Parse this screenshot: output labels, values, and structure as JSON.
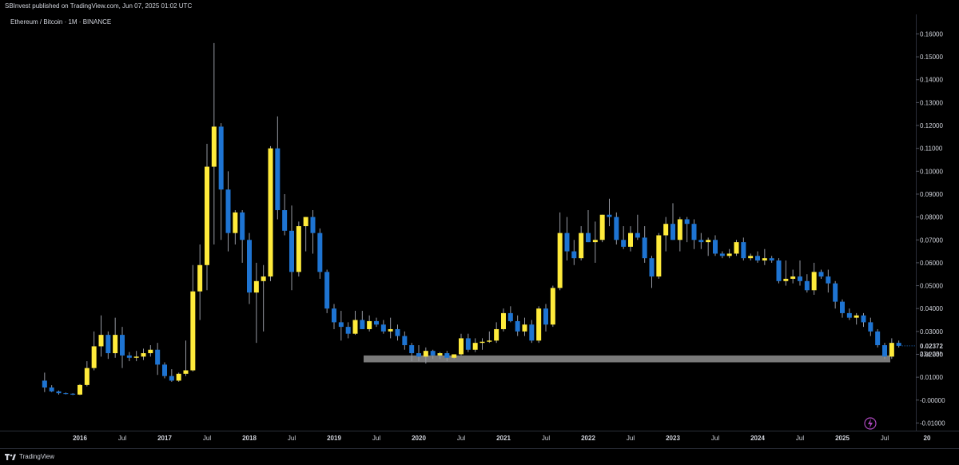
{
  "header": {
    "publisher": "SBInvest published on TradingView.com, Jun 07, 2025 01:02 UTC",
    "symbol": "Ethereum / Bitcoin · 1M · BINANCE"
  },
  "footer": {
    "brand": "TradingView"
  },
  "colors": {
    "up": "#ffeb3b",
    "down": "#1e74d2",
    "wick": "#9598a1",
    "zone": "#7a7a7a",
    "bg": "#000000"
  },
  "chart_data": {
    "type": "candlestick",
    "title": "Ethereum / Bitcoin · 1M · BINANCE",
    "ylim": [
      -0.013,
      0.164
    ],
    "y_ticks": [
      "0.16000",
      "0.15000",
      "0.14000",
      "0.13000",
      "0.12000",
      "0.11000",
      "0.10000",
      "0.09000",
      "0.08000",
      "0.07000",
      "0.06000",
      "0.05000",
      "0.04000",
      "0.03000",
      "0.02000",
      "0.01000",
      "-0.00000",
      "-0.01000"
    ],
    "x_ticks": [
      {
        "label": "2016",
        "t": 2016.0,
        "year": true
      },
      {
        "label": "Jul",
        "t": 2016.5
      },
      {
        "label": "2017",
        "t": 2017.0,
        "year": true
      },
      {
        "label": "Jul",
        "t": 2017.5
      },
      {
        "label": "2018",
        "t": 2018.0,
        "year": true
      },
      {
        "label": "Jul",
        "t": 2018.5
      },
      {
        "label": "2019",
        "t": 2019.0,
        "year": true
      },
      {
        "label": "Jul",
        "t": 2019.5
      },
      {
        "label": "2020",
        "t": 2020.0,
        "year": true
      },
      {
        "label": "Jul",
        "t": 2020.5
      },
      {
        "label": "2021",
        "t": 2021.0,
        "year": true
      },
      {
        "label": "Jul",
        "t": 2021.5
      },
      {
        "label": "2022",
        "t": 2022.0,
        "year": true
      },
      {
        "label": "Jul",
        "t": 2022.5
      },
      {
        "label": "2023",
        "t": 2023.0,
        "year": true
      },
      {
        "label": "Jul",
        "t": 2023.5
      },
      {
        "label": "2024",
        "t": 2024.0,
        "year": true
      },
      {
        "label": "Jul",
        "t": 2024.5
      },
      {
        "label": "2025",
        "t": 2025.0,
        "year": true
      },
      {
        "label": "Jul",
        "t": 2025.5
      },
      {
        "label": "20",
        "t": 2026.0,
        "year": true
      }
    ],
    "last_price": "0.02372",
    "countdown": "23d 23h",
    "support_zone": {
      "from": "2019-07",
      "to": "2025-07",
      "low": 0.0165,
      "high": 0.0195
    },
    "candles": [
      {
        "t": "2015-08",
        "o": 0.0085,
        "h": 0.012,
        "l": 0.0035,
        "c": 0.0055
      },
      {
        "t": "2015-09",
        "o": 0.0055,
        "h": 0.0065,
        "l": 0.0035,
        "c": 0.0038
      },
      {
        "t": "2015-10",
        "o": 0.0038,
        "h": 0.0042,
        "l": 0.0024,
        "c": 0.003
      },
      {
        "t": "2015-11",
        "o": 0.003,
        "h": 0.0033,
        "l": 0.0025,
        "c": 0.0028
      },
      {
        "t": "2015-12",
        "o": 0.0028,
        "h": 0.003,
        "l": 0.0022,
        "c": 0.0024
      },
      {
        "t": "2016-01",
        "o": 0.0024,
        "h": 0.007,
        "l": 0.0022,
        "c": 0.0066
      },
      {
        "t": "2016-02",
        "o": 0.0066,
        "h": 0.017,
        "l": 0.006,
        "c": 0.014
      },
      {
        "t": "2016-03",
        "o": 0.014,
        "h": 0.03,
        "l": 0.013,
        "c": 0.0235
      },
      {
        "t": "2016-04",
        "o": 0.0235,
        "h": 0.037,
        "l": 0.019,
        "c": 0.0285
      },
      {
        "t": "2016-05",
        "o": 0.0285,
        "h": 0.03,
        "l": 0.018,
        "c": 0.0205
      },
      {
        "t": "2016-06",
        "o": 0.0205,
        "h": 0.036,
        "l": 0.0185,
        "c": 0.0285
      },
      {
        "t": "2016-07",
        "o": 0.0285,
        "h": 0.032,
        "l": 0.014,
        "c": 0.0195
      },
      {
        "t": "2016-08",
        "o": 0.0195,
        "h": 0.021,
        "l": 0.017,
        "c": 0.0185
      },
      {
        "t": "2016-09",
        "o": 0.0185,
        "h": 0.0215,
        "l": 0.017,
        "c": 0.019
      },
      {
        "t": "2016-10",
        "o": 0.019,
        "h": 0.0225,
        "l": 0.0175,
        "c": 0.0205
      },
      {
        "t": "2016-11",
        "o": 0.0205,
        "h": 0.024,
        "l": 0.019,
        "c": 0.022
      },
      {
        "t": "2016-12",
        "o": 0.022,
        "h": 0.025,
        "l": 0.011,
        "c": 0.0155
      },
      {
        "t": "2017-01",
        "o": 0.0155,
        "h": 0.0165,
        "l": 0.0095,
        "c": 0.0105
      },
      {
        "t": "2017-02",
        "o": 0.0105,
        "h": 0.0135,
        "l": 0.008,
        "c": 0.0085
      },
      {
        "t": "2017-03",
        "o": 0.0085,
        "h": 0.012,
        "l": 0.008,
        "c": 0.0115
      },
      {
        "t": "2017-04",
        "o": 0.0115,
        "h": 0.026,
        "l": 0.0105,
        "c": 0.013
      },
      {
        "t": "2017-05",
        "o": 0.013,
        "h": 0.059,
        "l": 0.0125,
        "c": 0.0475
      },
      {
        "t": "2017-06",
        "o": 0.0475,
        "h": 0.068,
        "l": 0.035,
        "c": 0.059
      },
      {
        "t": "2017-07",
        "o": 0.059,
        "h": 0.112,
        "l": 0.048,
        "c": 0.102
      },
      {
        "t": "2017-08",
        "o": 0.102,
        "h": 0.156,
        "l": 0.068,
        "c": 0.1195
      },
      {
        "t": "2017-09",
        "o": 0.1195,
        "h": 0.121,
        "l": 0.07,
        "c": 0.092
      },
      {
        "t": "2017-10",
        "o": 0.092,
        "h": 0.1,
        "l": 0.065,
        "c": 0.073
      },
      {
        "t": "2017-11",
        "o": 0.073,
        "h": 0.083,
        "l": 0.068,
        "c": 0.082
      },
      {
        "t": "2017-12",
        "o": 0.082,
        "h": 0.083,
        "l": 0.06,
        "c": 0.07
      },
      {
        "t": "2018-01",
        "o": 0.07,
        "h": 0.073,
        "l": 0.042,
        "c": 0.047
      },
      {
        "t": "2018-02",
        "o": 0.047,
        "h": 0.06,
        "l": 0.025,
        "c": 0.052
      },
      {
        "t": "2018-03",
        "o": 0.052,
        "h": 0.059,
        "l": 0.03,
        "c": 0.054
      },
      {
        "t": "2018-04",
        "o": 0.054,
        "h": 0.111,
        "l": 0.052,
        "c": 0.11
      },
      {
        "t": "2018-05",
        "o": 0.11,
        "h": 0.124,
        "l": 0.079,
        "c": 0.083
      },
      {
        "t": "2018-06",
        "o": 0.083,
        "h": 0.09,
        "l": 0.072,
        "c": 0.074
      },
      {
        "t": "2018-07",
        "o": 0.074,
        "h": 0.085,
        "l": 0.048,
        "c": 0.056
      },
      {
        "t": "2018-08",
        "o": 0.056,
        "h": 0.078,
        "l": 0.054,
        "c": 0.076
      },
      {
        "t": "2018-09",
        "o": 0.076,
        "h": 0.08,
        "l": 0.065,
        "c": 0.08
      },
      {
        "t": "2018-10",
        "o": 0.08,
        "h": 0.083,
        "l": 0.064,
        "c": 0.073
      },
      {
        "t": "2018-11",
        "o": 0.073,
        "h": 0.075,
        "l": 0.053,
        "c": 0.056
      },
      {
        "t": "2018-12",
        "o": 0.056,
        "h": 0.057,
        "l": 0.038,
        "c": 0.04
      },
      {
        "t": "2019-01",
        "o": 0.04,
        "h": 0.042,
        "l": 0.031,
        "c": 0.034
      },
      {
        "t": "2019-02",
        "o": 0.034,
        "h": 0.039,
        "l": 0.026,
        "c": 0.032
      },
      {
        "t": "2019-03",
        "o": 0.032,
        "h": 0.034,
        "l": 0.027,
        "c": 0.029
      },
      {
        "t": "2019-04",
        "o": 0.029,
        "h": 0.039,
        "l": 0.0285,
        "c": 0.035
      },
      {
        "t": "2019-05",
        "o": 0.035,
        "h": 0.039,
        "l": 0.031,
        "c": 0.031
      },
      {
        "t": "2019-06",
        "o": 0.031,
        "h": 0.037,
        "l": 0.03,
        "c": 0.0345
      },
      {
        "t": "2019-07",
        "o": 0.0345,
        "h": 0.036,
        "l": 0.032,
        "c": 0.033
      },
      {
        "t": "2019-08",
        "o": 0.033,
        "h": 0.035,
        "l": 0.029,
        "c": 0.03
      },
      {
        "t": "2019-09",
        "o": 0.03,
        "h": 0.036,
        "l": 0.027,
        "c": 0.031
      },
      {
        "t": "2019-10",
        "o": 0.031,
        "h": 0.033,
        "l": 0.026,
        "c": 0.028
      },
      {
        "t": "2019-11",
        "o": 0.028,
        "h": 0.03,
        "l": 0.022,
        "c": 0.024
      },
      {
        "t": "2019-12",
        "o": 0.024,
        "h": 0.025,
        "l": 0.017,
        "c": 0.0205
      },
      {
        "t": "2020-01",
        "o": 0.0205,
        "h": 0.024,
        "l": 0.017,
        "c": 0.019
      },
      {
        "t": "2020-02",
        "o": 0.019,
        "h": 0.023,
        "l": 0.016,
        "c": 0.0215
      },
      {
        "t": "2020-03",
        "o": 0.0215,
        "h": 0.022,
        "l": 0.018,
        "c": 0.0195
      },
      {
        "t": "2020-04",
        "o": 0.0195,
        "h": 0.021,
        "l": 0.018,
        "c": 0.0205
      },
      {
        "t": "2020-05",
        "o": 0.0205,
        "h": 0.0215,
        "l": 0.017,
        "c": 0.0185
      },
      {
        "t": "2020-06",
        "o": 0.0185,
        "h": 0.02,
        "l": 0.018,
        "c": 0.02
      },
      {
        "t": "2020-07",
        "o": 0.02,
        "h": 0.029,
        "l": 0.0195,
        "c": 0.027
      },
      {
        "t": "2020-08",
        "o": 0.027,
        "h": 0.029,
        "l": 0.021,
        "c": 0.022
      },
      {
        "t": "2020-09",
        "o": 0.022,
        "h": 0.027,
        "l": 0.021,
        "c": 0.025
      },
      {
        "t": "2020-10",
        "o": 0.025,
        "h": 0.027,
        "l": 0.022,
        "c": 0.0255
      },
      {
        "t": "2020-11",
        "o": 0.0255,
        "h": 0.03,
        "l": 0.025,
        "c": 0.026
      },
      {
        "t": "2020-12",
        "o": 0.026,
        "h": 0.034,
        "l": 0.025,
        "c": 0.031
      },
      {
        "t": "2021-01",
        "o": 0.031,
        "h": 0.04,
        "l": 0.03,
        "c": 0.038
      },
      {
        "t": "2021-02",
        "o": 0.038,
        "h": 0.041,
        "l": 0.034,
        "c": 0.0345
      },
      {
        "t": "2021-03",
        "o": 0.0345,
        "h": 0.037,
        "l": 0.028,
        "c": 0.03
      },
      {
        "t": "2021-04",
        "o": 0.03,
        "h": 0.036,
        "l": 0.028,
        "c": 0.033
      },
      {
        "t": "2021-05",
        "o": 0.033,
        "h": 0.035,
        "l": 0.025,
        "c": 0.026
      },
      {
        "t": "2021-06",
        "o": 0.026,
        "h": 0.041,
        "l": 0.025,
        "c": 0.04
      },
      {
        "t": "2021-07",
        "o": 0.04,
        "h": 0.042,
        "l": 0.03,
        "c": 0.033
      },
      {
        "t": "2021-08",
        "o": 0.033,
        "h": 0.05,
        "l": 0.032,
        "c": 0.049
      },
      {
        "t": "2021-09",
        "o": 0.049,
        "h": 0.082,
        "l": 0.048,
        "c": 0.073
      },
      {
        "t": "2021-10",
        "o": 0.073,
        "h": 0.08,
        "l": 0.061,
        "c": 0.065
      },
      {
        "t": "2021-11",
        "o": 0.065,
        "h": 0.07,
        "l": 0.059,
        "c": 0.062
      },
      {
        "t": "2021-12",
        "o": 0.062,
        "h": 0.076,
        "l": 0.061,
        "c": 0.073
      },
      {
        "t": "2022-01",
        "o": 0.073,
        "h": 0.083,
        "l": 0.069,
        "c": 0.069
      },
      {
        "t": "2022-02",
        "o": 0.069,
        "h": 0.078,
        "l": 0.06,
        "c": 0.07
      },
      {
        "t": "2022-03",
        "o": 0.07,
        "h": 0.081,
        "l": 0.069,
        "c": 0.081
      },
      {
        "t": "2022-04",
        "o": 0.081,
        "h": 0.088,
        "l": 0.076,
        "c": 0.08
      },
      {
        "t": "2022-05",
        "o": 0.08,
        "h": 0.082,
        "l": 0.068,
        "c": 0.07
      },
      {
        "t": "2022-06",
        "o": 0.07,
        "h": 0.076,
        "l": 0.066,
        "c": 0.067
      },
      {
        "t": "2022-07",
        "o": 0.067,
        "h": 0.076,
        "l": 0.065,
        "c": 0.073
      },
      {
        "t": "2022-08",
        "o": 0.073,
        "h": 0.081,
        "l": 0.07,
        "c": 0.071
      },
      {
        "t": "2022-09",
        "o": 0.071,
        "h": 0.076,
        "l": 0.06,
        "c": 0.062
      },
      {
        "t": "2022-10",
        "o": 0.062,
        "h": 0.063,
        "l": 0.049,
        "c": 0.054
      },
      {
        "t": "2022-11",
        "o": 0.054,
        "h": 0.073,
        "l": 0.053,
        "c": 0.072
      },
      {
        "t": "2022-12",
        "o": 0.072,
        "h": 0.08,
        "l": 0.065,
        "c": 0.077
      },
      {
        "t": "2023-01",
        "o": 0.077,
        "h": 0.086,
        "l": 0.07,
        "c": 0.07
      },
      {
        "t": "2023-02",
        "o": 0.07,
        "h": 0.08,
        "l": 0.065,
        "c": 0.079
      },
      {
        "t": "2023-03",
        "o": 0.079,
        "h": 0.08,
        "l": 0.069,
        "c": 0.077
      },
      {
        "t": "2023-04",
        "o": 0.077,
        "h": 0.079,
        "l": 0.066,
        "c": 0.07
      },
      {
        "t": "2023-05",
        "o": 0.07,
        "h": 0.073,
        "l": 0.066,
        "c": 0.069
      },
      {
        "t": "2023-06",
        "o": 0.069,
        "h": 0.071,
        "l": 0.063,
        "c": 0.07
      },
      {
        "t": "2023-07",
        "o": 0.07,
        "h": 0.072,
        "l": 0.063,
        "c": 0.064
      },
      {
        "t": "2023-08",
        "o": 0.064,
        "h": 0.065,
        "l": 0.062,
        "c": 0.063
      },
      {
        "t": "2023-09",
        "o": 0.063,
        "h": 0.066,
        "l": 0.062,
        "c": 0.064
      },
      {
        "t": "2023-10",
        "o": 0.064,
        "h": 0.07,
        "l": 0.063,
        "c": 0.069
      },
      {
        "t": "2023-11",
        "o": 0.069,
        "h": 0.071,
        "l": 0.061,
        "c": 0.062
      },
      {
        "t": "2023-12",
        "o": 0.062,
        "h": 0.064,
        "l": 0.061,
        "c": 0.063
      },
      {
        "t": "2024-01",
        "o": 0.063,
        "h": 0.065,
        "l": 0.06,
        "c": 0.061
      },
      {
        "t": "2024-02",
        "o": 0.061,
        "h": 0.066,
        "l": 0.059,
        "c": 0.062
      },
      {
        "t": "2024-03",
        "o": 0.062,
        "h": 0.063,
        "l": 0.06,
        "c": 0.061
      },
      {
        "t": "2024-04",
        "o": 0.061,
        "h": 0.062,
        "l": 0.051,
        "c": 0.052
      },
      {
        "t": "2024-05",
        "o": 0.052,
        "h": 0.061,
        "l": 0.05,
        "c": 0.053
      },
      {
        "t": "2024-06",
        "o": 0.053,
        "h": 0.057,
        "l": 0.051,
        "c": 0.054
      },
      {
        "t": "2024-07",
        "o": 0.054,
        "h": 0.061,
        "l": 0.05,
        "c": 0.052
      },
      {
        "t": "2024-08",
        "o": 0.052,
        "h": 0.055,
        "l": 0.047,
        "c": 0.048
      },
      {
        "t": "2024-09",
        "o": 0.048,
        "h": 0.06,
        "l": 0.046,
        "c": 0.056
      },
      {
        "t": "2024-10",
        "o": 0.056,
        "h": 0.057,
        "l": 0.053,
        "c": 0.054
      },
      {
        "t": "2024-11",
        "o": 0.054,
        "h": 0.057,
        "l": 0.047,
        "c": 0.051
      },
      {
        "t": "2024-12",
        "o": 0.051,
        "h": 0.052,
        "l": 0.04,
        "c": 0.043
      },
      {
        "t": "2025-01",
        "o": 0.043,
        "h": 0.044,
        "l": 0.036,
        "c": 0.038
      },
      {
        "t": "2025-02",
        "o": 0.038,
        "h": 0.04,
        "l": 0.035,
        "c": 0.036
      },
      {
        "t": "2025-03",
        "o": 0.036,
        "h": 0.038,
        "l": 0.033,
        "c": 0.037
      },
      {
        "t": "2025-04",
        "o": 0.037,
        "h": 0.038,
        "l": 0.032,
        "c": 0.034
      },
      {
        "t": "2025-05",
        "o": 0.034,
        "h": 0.036,
        "l": 0.028,
        "c": 0.03
      },
      {
        "t": "2025-06",
        "o": 0.03,
        "h": 0.031,
        "l": 0.023,
        "c": 0.024
      },
      {
        "t": "2025-07",
        "o": 0.024,
        "h": 0.025,
        "l": 0.018,
        "c": 0.019
      },
      {
        "t": "2025-08",
        "o": 0.019,
        "h": 0.027,
        "l": 0.018,
        "c": 0.025
      },
      {
        "t": "2025-09",
        "o": 0.025,
        "h": 0.026,
        "l": 0.023,
        "c": 0.0237
      }
    ]
  }
}
